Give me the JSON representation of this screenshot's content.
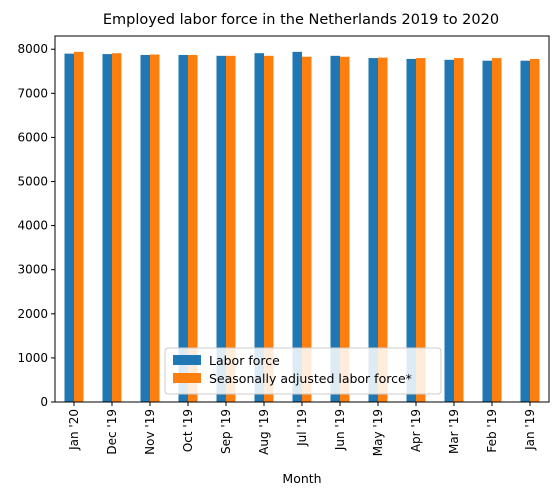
{
  "chart_data": {
    "type": "bar",
    "title": "Employed labor force in the Netherlands 2019 to 2020",
    "xlabel": "Month",
    "ylabel": "",
    "ylim": [
      0,
      8300
    ],
    "yticks": [
      0,
      1000,
      2000,
      3000,
      4000,
      5000,
      6000,
      7000,
      8000
    ],
    "categories": [
      "Jan '20",
      "Dec '19",
      "Nov '19",
      "Oct '19",
      "Sep '19",
      "Aug '19",
      "Jul '19",
      "Jun '19",
      "May '19",
      "Apr '19",
      "Mar '19",
      "Feb '19",
      "Jan '19"
    ],
    "series": [
      {
        "name": "Labor force",
        "color": "#1f77b4",
        "values": [
          7900,
          7890,
          7870,
          7870,
          7850,
          7910,
          7940,
          7850,
          7800,
          7780,
          7760,
          7740,
          7740
        ]
      },
      {
        "name": "Seasonally adjusted labor force*",
        "color": "#ff7f0e",
        "values": [
          7940,
          7910,
          7880,
          7870,
          7850,
          7850,
          7830,
          7830,
          7810,
          7800,
          7800,
          7800,
          7780
        ]
      }
    ],
    "legend_position": "bottom-center",
    "grid": false
  }
}
